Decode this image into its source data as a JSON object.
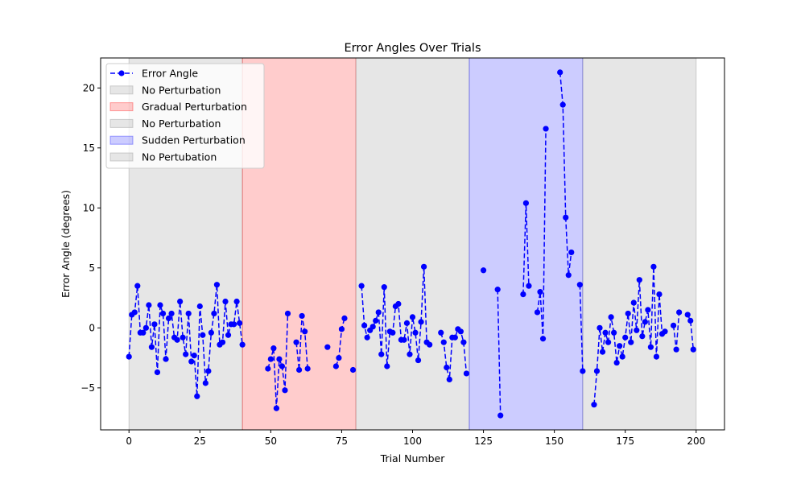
{
  "chart_data": {
    "type": "line",
    "title": "Error Angles Over Trials",
    "xlabel": "Trial Number",
    "ylabel": "Error Angle (degrees)",
    "xlim": [
      -10,
      210
    ],
    "ylim": [
      -8.5,
      22.5
    ],
    "xticks": [
      0,
      25,
      50,
      75,
      100,
      125,
      150,
      175,
      200
    ],
    "yticks": [
      -5,
      0,
      5,
      10,
      15,
      20
    ],
    "grid": false,
    "legend_position": "top-left",
    "series": [
      {
        "name": "Error Angle",
        "color": "#0000ff",
        "style": "dashed-with-circle-markers",
        "x": [
          0,
          1,
          2,
          3,
          4,
          5,
          6,
          7,
          8,
          9,
          10,
          11,
          12,
          13,
          14,
          15,
          16,
          17,
          18,
          19,
          20,
          21,
          22,
          23,
          24,
          25,
          26,
          27,
          28,
          29,
          30,
          31,
          32,
          33,
          34,
          35,
          36,
          37,
          38,
          39,
          40,
          49,
          50,
          51,
          52,
          53,
          54,
          55,
          56,
          59,
          60,
          61,
          62,
          63,
          70,
          73,
          74,
          75,
          76,
          79,
          82,
          83,
          84,
          85,
          86,
          87,
          88,
          89,
          90,
          91,
          92,
          93,
          94,
          95,
          96,
          97,
          98,
          99,
          100,
          101,
          102,
          103,
          104,
          105,
          106,
          110,
          111,
          112,
          113,
          114,
          115,
          116,
          117,
          118,
          119,
          125,
          130,
          131,
          139,
          140,
          141,
          144,
          145,
          146,
          147,
          152,
          153,
          154,
          155,
          156,
          159,
          160,
          164,
          165,
          166,
          167,
          168,
          169,
          170,
          171,
          172,
          173,
          174,
          175,
          176,
          177,
          178,
          179,
          180,
          181,
          182,
          183,
          184,
          185,
          186,
          187,
          188,
          189,
          192,
          193,
          194,
          197,
          198,
          199
        ],
        "y": [
          -2.4,
          1.1,
          1.3,
          3.5,
          -0.4,
          -0.4,
          0.0,
          1.9,
          -1.6,
          0.3,
          -3.7,
          1.9,
          1.2,
          -2.6,
          0.8,
          1.2,
          -0.8,
          -1.0,
          2.2,
          -0.8,
          -2.2,
          1.2,
          -2.8,
          -2.3,
          -5.7,
          1.8,
          -0.6,
          -4.6,
          -3.6,
          -0.4,
          1.2,
          3.6,
          -1.4,
          -1.2,
          2.2,
          -0.6,
          0.3,
          0.3,
          2.2,
          0.4,
          -1.4,
          -3.4,
          -2.6,
          -1.7,
          -6.7,
          -2.6,
          -3.2,
          -5.2,
          1.2,
          -1.2,
          -3.5,
          1.0,
          -0.3,
          -3.4,
          -1.6,
          -3.2,
          -2.5,
          -0.1,
          0.8,
          -3.5,
          3.5,
          0.2,
          -0.8,
          -0.2,
          0.1,
          0.6,
          1.3,
          -2.2,
          3.4,
          -3.2,
          -0.3,
          -0.4,
          1.8,
          2.0,
          -1.0,
          -1.0,
          0.4,
          -2.2,
          0.9,
          -0.4,
          -2.7,
          0.5,
          5.1,
          -1.2,
          -1.4,
          -0.4,
          -1.2,
          -3.3,
          -4.3,
          -0.8,
          -0.8,
          -0.1,
          -0.3,
          -1.2,
          -3.8,
          4.8,
          3.2,
          -7.3,
          2.8,
          10.4,
          3.5,
          1.3,
          3.0,
          -0.9,
          16.6,
          21.3,
          18.6,
          9.2,
          4.4,
          6.3,
          3.6,
          -3.6,
          -6.4,
          -3.6,
          0.0,
          -2.0,
          -0.4,
          -1.2,
          0.9,
          -0.4,
          -2.9,
          -1.5,
          -2.4,
          -0.8,
          1.2,
          -1.2,
          2.1,
          -0.2,
          4.0,
          -0.7,
          0.5,
          1.5,
          -1.6,
          5.1,
          -2.4,
          2.8,
          -0.5,
          -0.3,
          0.2,
          -1.8,
          1.3,
          1.1,
          0.6,
          -1.8
        ]
      }
    ],
    "regions": [
      {
        "name": "No Perturbation",
        "from": 0,
        "to": 40,
        "color": "#808080",
        "alpha": 0.2
      },
      {
        "name": "Gradual Perturbation",
        "from": 40,
        "to": 80,
        "color": "#ff0000",
        "alpha": 0.2
      },
      {
        "name": "No Perturbation",
        "from": 80,
        "to": 120,
        "color": "#808080",
        "alpha": 0.2
      },
      {
        "name": "Sudden Perturbation",
        "from": 120,
        "to": 160,
        "color": "#0000ff",
        "alpha": 0.2
      },
      {
        "name": "No Pertubation",
        "from": 160,
        "to": 200,
        "color": "#808080",
        "alpha": 0.2
      }
    ]
  }
}
